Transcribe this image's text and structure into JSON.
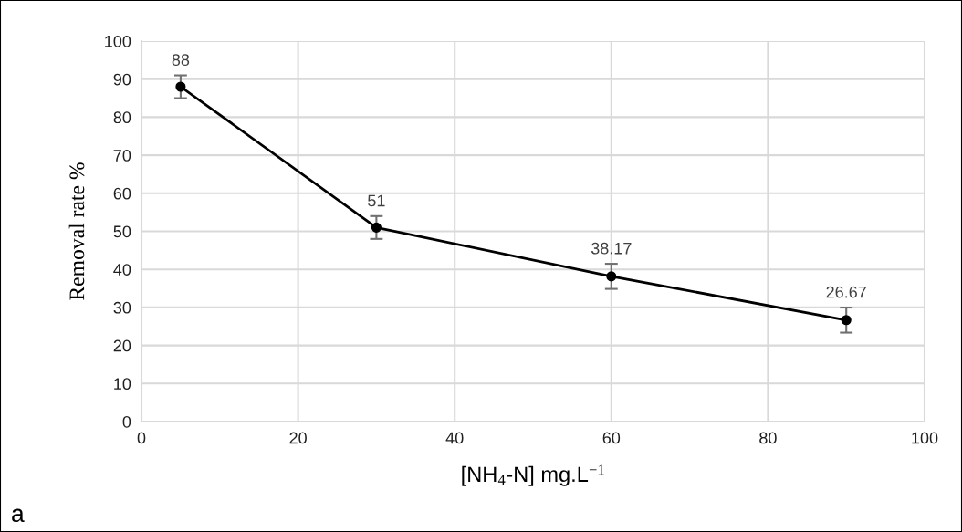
{
  "chart_data": {
    "type": "line",
    "xlabel": "[NH$_{4}$-N] mg.L$^{−1}$",
    "ylabel": "Removal rate %",
    "x": [
      5,
      30,
      60,
      90
    ],
    "series": [
      {
        "color": "#000000",
        "values": [
          88,
          51,
          38.17,
          26.67
        ],
        "errors": [
          3,
          3,
          3.3,
          3.3
        ]
      }
    ],
    "xlim": [
      0,
      100
    ],
    "xticks": [
      0,
      20,
      40,
      60,
      80,
      100
    ],
    "ylim": [
      0,
      100
    ],
    "yticks": [
      0,
      10,
      20,
      30,
      40,
      50,
      60,
      70,
      80,
      90,
      100
    ],
    "grid": true,
    "marker": "circle",
    "line_style": "solid",
    "data_labels": true,
    "legend": false,
    "annotations": [
      "a"
    ]
  }
}
